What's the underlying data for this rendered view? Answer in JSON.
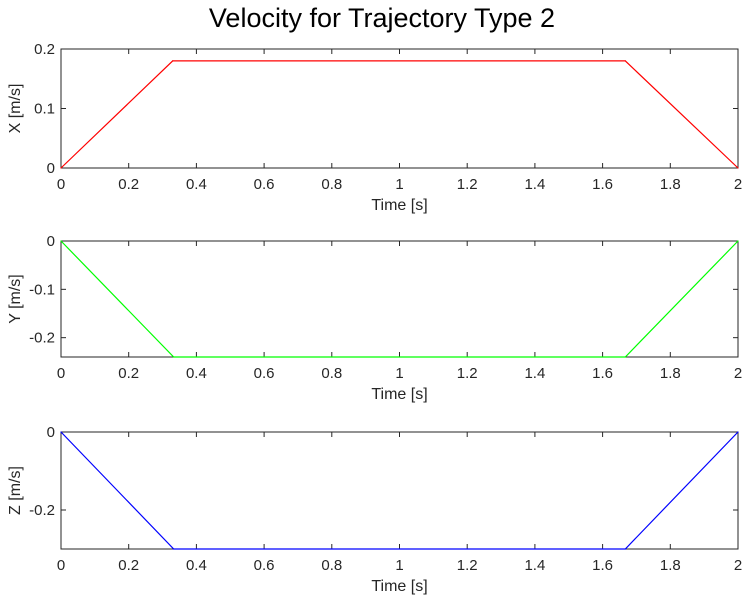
{
  "figure_title": "Velocity for Trajectory Type 2",
  "chart_data": [
    {
      "type": "line",
      "xlabel": "Time [s]",
      "ylabel": "X [m/s]",
      "xlim": [
        0,
        2
      ],
      "ylim": [
        0,
        0.2
      ],
      "xticks": [
        "0",
        "0.2",
        "0.4",
        "0.6",
        "0.8",
        "1",
        "1.2",
        "1.4",
        "1.6",
        "1.8",
        "2"
      ],
      "yticks": [
        "0",
        "0.1",
        "0.2"
      ],
      "grid": false,
      "series": [
        {
          "color": "#ff0000",
          "x": [
            0,
            0.33,
            1.667,
            2
          ],
          "y": [
            0,
            0.18,
            0.18,
            0
          ]
        }
      ]
    },
    {
      "type": "line",
      "xlabel": "Time [s]",
      "ylabel": "Y [m/s]",
      "xlim": [
        0,
        2
      ],
      "ylim": [
        -0.24,
        0
      ],
      "xticks": [
        "0",
        "0.2",
        "0.4",
        "0.6",
        "0.8",
        "1",
        "1.2",
        "1.4",
        "1.6",
        "1.8",
        "2"
      ],
      "yticks": [
        "-0.2",
        "-0.1",
        "0"
      ],
      "grid": false,
      "series": [
        {
          "color": "#00ff00",
          "x": [
            0,
            0.333,
            1.667,
            2
          ],
          "y": [
            0,
            -0.24,
            -0.24,
            0
          ]
        }
      ]
    },
    {
      "type": "line",
      "xlabel": "Time [s]",
      "ylabel": "Z [m/s]",
      "xlim": [
        0,
        2
      ],
      "ylim": [
        -0.3,
        0
      ],
      "xticks": [
        "0",
        "0.2",
        "0.4",
        "0.6",
        "0.8",
        "1",
        "1.2",
        "1.4",
        "1.6",
        "1.8",
        "2"
      ],
      "yticks": [
        "-0.2",
        "0"
      ],
      "grid": false,
      "series": [
        {
          "color": "#0000ff",
          "x": [
            0,
            0.333,
            1.667,
            2
          ],
          "y": [
            0,
            -0.3,
            -0.3,
            0
          ]
        }
      ]
    }
  ]
}
